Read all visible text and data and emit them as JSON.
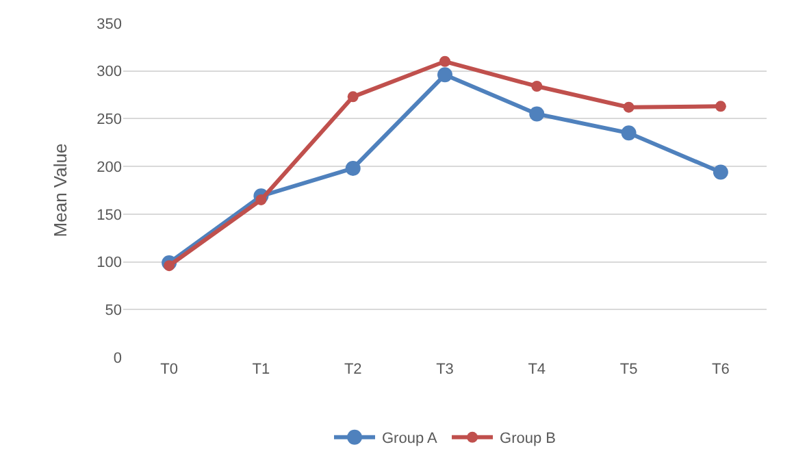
{
  "chart_data": {
    "type": "line",
    "ylabel": "Mean Value",
    "categories": [
      "T0",
      "T1",
      "T2",
      "T3",
      "T4",
      "T5",
      "T6"
    ],
    "series": [
      {
        "name": "Group A",
        "color": "#4f81bd",
        "values": [
          99,
          169,
          198,
          296,
          255,
          235,
          194
        ]
      },
      {
        "name": "Group B",
        "color": "#c0504d",
        "values": [
          96,
          165,
          273,
          310,
          284,
          262,
          263
        ]
      }
    ],
    "ylim": [
      0,
      350
    ],
    "yticks": [
      0,
      50,
      100,
      150,
      200,
      250,
      300,
      350
    ],
    "grid": "y",
    "legend": "bottom",
    "marker": "circle",
    "line_style": "solid"
  }
}
